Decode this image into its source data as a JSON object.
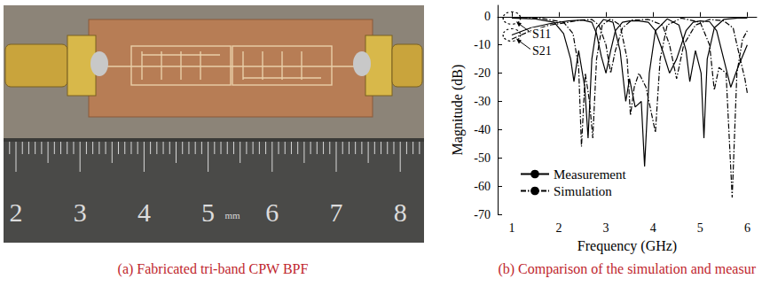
{
  "chart_data": {
    "type": "line",
    "xlabel": "Frequency (GHz)",
    "ylabel": "Magnitude (dB)",
    "xlim": [
      0.7,
      6.2
    ],
    "xticks": [
      1,
      2,
      3,
      4,
      5,
      6
    ],
    "ylim": [
      -70,
      4
    ],
    "yticks": [
      -70,
      -60,
      -50,
      -40,
      -30,
      -20,
      -10,
      0
    ],
    "grid": false,
    "legend": "lower left",
    "annotations": [
      {
        "text": "S11",
        "x": 1.0,
        "y": -0.5
      },
      {
        "text": "S21",
        "x": 1.0,
        "y": -6.5
      }
    ],
    "series": [
      {
        "name": "Measurement",
        "color": "#000000",
        "line_style": "solid",
        "x": [
          1.0,
          1.5,
          1.9,
          2.1,
          2.25,
          2.32,
          2.42,
          2.55,
          2.62,
          2.7,
          2.8,
          2.95,
          3.15,
          3.3,
          3.42,
          3.5,
          3.62,
          3.75,
          3.82,
          3.92,
          4.05,
          4.3,
          4.55,
          4.7,
          4.78,
          4.9,
          5.02,
          5.08,
          5.15,
          5.3,
          5.5,
          5.8,
          6.0
        ],
        "values": [
          -0.5,
          -0.8,
          -2,
          -6,
          -15,
          -23,
          -12,
          -25,
          -43,
          -15,
          -4,
          -1,
          -2,
          -12,
          -30,
          -22,
          -32,
          -30,
          -53,
          -20,
          -5,
          -0.8,
          -3,
          -12,
          -23,
          -12,
          -20,
          -43,
          -15,
          -4,
          -1,
          -0.5,
          -0.5
        ]
      },
      {
        "name": "Measurement",
        "color": "#000000",
        "line_style": "solid",
        "x": [
          1.0,
          1.4,
          1.8,
          2.2,
          2.5,
          2.7,
          2.8,
          2.9,
          3.0,
          3.1,
          3.2,
          3.35,
          3.5,
          3.7,
          3.9,
          4.05,
          4.2,
          4.35,
          4.5,
          4.7,
          4.85,
          5.0,
          5.2,
          5.35,
          5.5,
          5.65,
          5.8,
          6.0
        ],
        "values": [
          -6.5,
          -4,
          -2.5,
          -1.5,
          -1.2,
          -2,
          -6,
          -14,
          -20,
          -12,
          -5,
          -2,
          -1.5,
          -1.5,
          -2,
          -5,
          -12,
          -20,
          -15,
          -5,
          -2,
          -1.5,
          -1.8,
          -5,
          -15,
          -25,
          -18,
          -10
        ]
      },
      {
        "name": "Simulation",
        "color": "#000000",
        "line_style": "dashdot",
        "x": [
          1.0,
          1.6,
          2.1,
          2.3,
          2.42,
          2.48,
          2.56,
          2.65,
          2.72,
          2.8,
          2.92,
          3.1,
          3.3,
          3.45,
          3.52,
          3.6,
          3.7,
          3.85,
          4.05,
          4.15,
          4.3,
          4.6,
          5.0,
          5.2,
          5.3,
          5.4,
          5.55,
          5.68,
          5.78,
          5.9,
          6.0
        ],
        "values": [
          -0.3,
          -0.5,
          -2,
          -6,
          -18,
          -46,
          -20,
          -30,
          -43,
          -15,
          -3,
          -0.8,
          -3,
          -15,
          -35,
          -25,
          -20,
          -25,
          -41,
          -15,
          -3,
          -0.5,
          -2,
          -10,
          -26,
          -18,
          -20,
          -64,
          -20,
          -8,
          -5
        ]
      },
      {
        "name": "Simulation",
        "color": "#000000",
        "line_style": "dashdot",
        "x": [
          1.0,
          1.4,
          1.8,
          2.2,
          2.45,
          2.7,
          2.85,
          3.0,
          3.1,
          3.2,
          3.35,
          3.55,
          3.9,
          4.2,
          4.35,
          4.5,
          4.65,
          4.9,
          5.2,
          5.5,
          5.7,
          5.85,
          5.95,
          6.0
        ],
        "values": [
          -8,
          -5,
          -3,
          -2,
          -1.2,
          -1,
          -3,
          -10,
          -20,
          -12,
          -4,
          -1.2,
          -1,
          -3,
          -10,
          -22,
          -10,
          -3,
          -1,
          -1.5,
          -4,
          -15,
          -22,
          -27
        ]
      }
    ]
  },
  "photo": {
    "ruler_labels": [
      "2",
      "3",
      "4",
      "5",
      "6",
      "7",
      "8"
    ],
    "ruler_unit": "mm"
  },
  "captions": [
    "(a) Fabricated tri-band CPW BPF",
    "(b) Comparison of the simulation and measur"
  ]
}
